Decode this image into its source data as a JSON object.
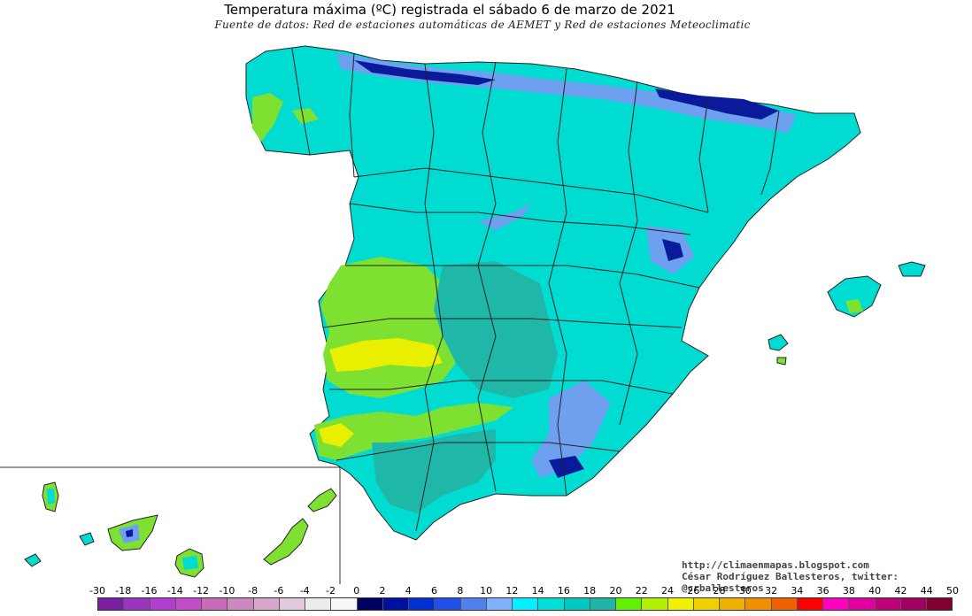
{
  "map": {
    "title": "Temperatura máxima (ºC) registrada el sábado 6 de marzo de 2021",
    "subtitle": "Fuente de datos: Red de estaciones automáticas de AEMET y Red de estaciones Meteoclimatic",
    "credit_url": "http://climaenmapas.blogspot.com",
    "credit_author": "César Rodríguez Ballesteros, twitter: @crballesteros",
    "colors": {
      "background": "#ffffff",
      "cyan_base": "#00dcd2",
      "teal": "#1fb8a8",
      "green": "#7ee030",
      "yellow": "#e8f000",
      "blue_light": "#6ea0f0",
      "blue_dark": "#0a1a9a",
      "border_line": "#222222"
    }
  },
  "legend": {
    "labels": [
      "-30",
      "-18",
      "-16",
      "-14",
      "-12",
      "-10",
      "-8",
      "-6",
      "-4",
      "-2",
      "0",
      "2",
      "4",
      "6",
      "8",
      "10",
      "12",
      "14",
      "16",
      "18",
      "20",
      "22",
      "24",
      "26",
      "28",
      "30",
      "32",
      "34",
      "36",
      "38",
      "40",
      "42",
      "44",
      "50"
    ],
    "colors": [
      "#7a1fa2",
      "#9b35c0",
      "#b23ed0",
      "#c24cc8",
      "#c86ab8",
      "#cc88c0",
      "#d6a8cc",
      "#e2cade",
      "#ececec",
      "#f6f6f6",
      "#000060",
      "#0010a0",
      "#0030d0",
      "#2050e8",
      "#5080f0",
      "#80b0f8",
      "#00f0ff",
      "#00e0d8",
      "#00c8c0",
      "#20b4a8",
      "#60f000",
      "#b0f000",
      "#f0f000",
      "#f0d000",
      "#f0b000",
      "#f09000",
      "#f06000",
      "#ff0000",
      "#ff00c0",
      "#e000a0",
      "#c0007a",
      "#a00060",
      "#800030"
    ]
  }
}
